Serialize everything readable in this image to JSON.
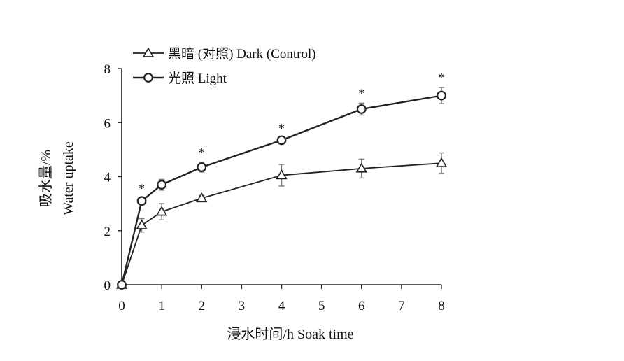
{
  "chart_data": {
    "type": "line",
    "title": "",
    "xlabel": "浸水时间/h Soak time",
    "ylabel_cn": "吸水量/%",
    "ylabel_en": "Water uptake",
    "xlim": [
      0,
      8
    ],
    "ylim": [
      0,
      8
    ],
    "x_ticks": [
      0,
      1,
      2,
      3,
      4,
      5,
      6,
      7,
      8
    ],
    "y_ticks": [
      0,
      2,
      4,
      6,
      8
    ],
    "legend_position": "top-left",
    "grid": false,
    "x": [
      0,
      0.5,
      1,
      2,
      4,
      6,
      8
    ],
    "series": [
      {
        "name": "黑暗 (对照) Dark (Control)",
        "marker": "triangle",
        "values": [
          0,
          2.2,
          2.7,
          3.2,
          4.05,
          4.3,
          4.5
        ],
        "errors": [
          0,
          0.25,
          0.3,
          0.1,
          0.4,
          0.35,
          0.38
        ]
      },
      {
        "name": "光照 Light",
        "marker": "circle",
        "values": [
          0,
          3.1,
          3.7,
          4.35,
          5.35,
          6.5,
          7.0
        ],
        "errors": [
          0,
          0.1,
          0.2,
          0.18,
          0.08,
          0.22,
          0.3
        ]
      }
    ],
    "significance_marks": [
      {
        "x": 0.5,
        "label": "*"
      },
      {
        "x": 2,
        "label": "*"
      },
      {
        "x": 4,
        "label": "*"
      },
      {
        "x": 6,
        "label": "*"
      },
      {
        "x": 8,
        "label": "*"
      }
    ]
  }
}
